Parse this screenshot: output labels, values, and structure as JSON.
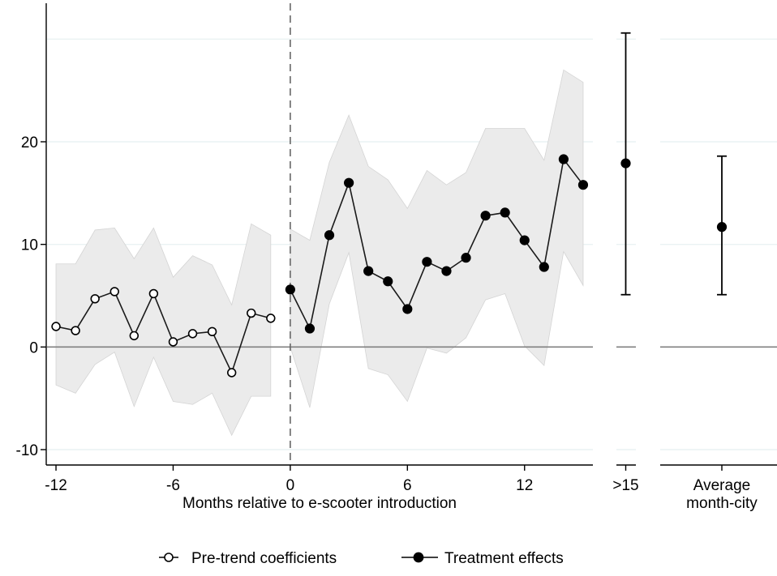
{
  "chart_data": {
    "type": "line",
    "xlabel": "Months relative to e-scooter introduction",
    "ylabel": "",
    "xlim": [
      -12.5,
      15.5
    ],
    "ylim": [
      -11.5,
      33.5
    ],
    "x_ticks": [
      -12,
      -6,
      0,
      6,
      12
    ],
    "x_tick_labels": [
      "-12",
      "-6",
      "0",
      "6",
      "12"
    ],
    "y_ticks": [
      -10,
      0,
      10,
      20
    ],
    "y_tick_labels": [
      "-10",
      "0",
      "10",
      "20"
    ],
    "grid": true,
    "reference_lines": {
      "horizontal_zero": true,
      "vertical_dashed_at_x": 0
    },
    "series": [
      {
        "name": "Pre-trend coefficients",
        "marker": "hollow-circle",
        "x": [
          -12,
          -11,
          -10,
          -9,
          -8,
          -7,
          -6,
          -5,
          -4,
          -3,
          -2,
          -1
        ],
        "y": [
          2.0,
          1.6,
          4.7,
          5.4,
          1.1,
          5.2,
          0.5,
          1.3,
          1.5,
          -2.5,
          3.3,
          2.8
        ],
        "ci_lower": [
          -3.7,
          -4.5,
          -1.7,
          -0.5,
          -5.8,
          -1.0,
          -5.3,
          -5.6,
          -4.5,
          -8.6,
          -4.8,
          -4.8
        ],
        "ci_upper": [
          8.1,
          8.1,
          11.4,
          11.6,
          8.6,
          11.6,
          6.8,
          8.9,
          8.0,
          4.1,
          12.0,
          10.9
        ]
      },
      {
        "name": "Treatment effects",
        "marker": "filled-circle",
        "x": [
          0,
          1,
          2,
          3,
          4,
          5,
          6,
          7,
          8,
          9,
          10,
          11,
          12,
          13,
          14,
          15
        ],
        "y": [
          5.6,
          1.8,
          10.9,
          16.0,
          7.4,
          6.4,
          3.7,
          8.3,
          7.4,
          8.7,
          12.8,
          13.1,
          10.4,
          7.8,
          18.3,
          15.8
        ],
        "ci_lower": [
          0.0,
          -5.9,
          4.2,
          9.2,
          -2.1,
          -2.7,
          -5.3,
          -0.1,
          -0.6,
          0.9,
          4.6,
          5.2,
          0.1,
          -1.8,
          9.3,
          6.0
        ],
        "ci_upper": [
          11.5,
          10.4,
          18.0,
          22.6,
          17.6,
          16.3,
          13.5,
          17.2,
          15.8,
          17.0,
          21.3,
          21.3,
          21.3,
          18.2,
          27.0,
          25.8
        ]
      }
    ],
    "side_panels": [
      {
        "label": ">15",
        "estimate": 17.9,
        "ci_lower": 5.1,
        "ci_upper": 30.6
      },
      {
        "label_lines": [
          "Average",
          "month-city"
        ],
        "estimate": 11.7,
        "ci_lower": 5.1,
        "ci_upper": 18.6
      }
    ],
    "legend": {
      "placement": "bottom-center",
      "entries": [
        "Pre-trend coefficients",
        "Treatment effects"
      ]
    }
  },
  "colors": {
    "ci_band": "#ebebeb",
    "ci_band_edge": "#d4d4d4",
    "grid": "#eaf2f3",
    "line": "#1a1a1a",
    "zero_line": "#808080",
    "dashed": "#666666",
    "axis": "#000000"
  }
}
